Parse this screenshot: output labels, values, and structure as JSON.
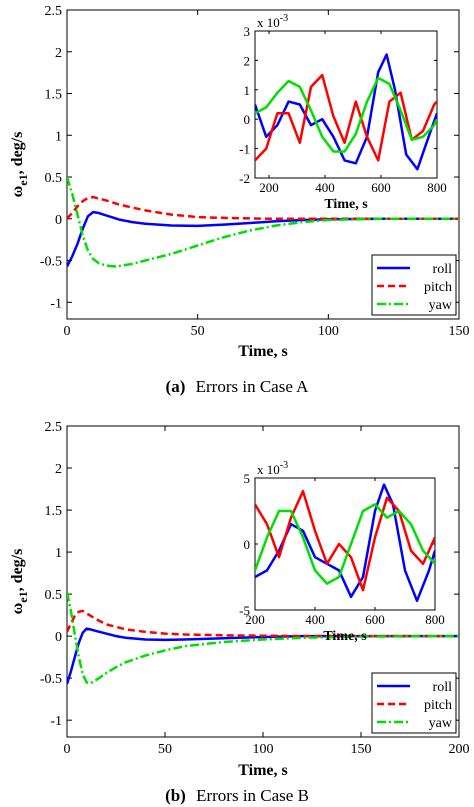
{
  "panels": [
    {
      "caption_letter": "(a)",
      "caption_text": "Errors in Case A"
    },
    {
      "caption_letter": "(b)",
      "caption_text": "Errors in Case B"
    }
  ],
  "chart_data": [
    {
      "type": "line",
      "panel": "a",
      "xlabel": "Time, s",
      "ylabel": "ω_e1, deg/s",
      "xlim": [
        0,
        150
      ],
      "ylim": [
        -1.2,
        2.5
      ],
      "xticks": [
        0,
        50,
        100,
        150
      ],
      "yticks": [
        -1,
        -0.5,
        0,
        0.5,
        1,
        1.5,
        2,
        2.5
      ],
      "legend": {
        "placement": "bottom-right",
        "entries": [
          "roll",
          "pitch",
          "yaw"
        ]
      },
      "colors": {
        "roll": "#0000ff",
        "pitch": "#ff0000",
        "yaw": "#00e000"
      },
      "series": [
        {
          "name": "roll",
          "style": "solid",
          "x": [
            0,
            2,
            4,
            6,
            8,
            10,
            12,
            15,
            20,
            25,
            30,
            40,
            50,
            60,
            70,
            80,
            90,
            100,
            120,
            150
          ],
          "values": [
            -0.57,
            -0.45,
            -0.3,
            -0.12,
            0.03,
            0.08,
            0.07,
            0.04,
            -0.01,
            -0.04,
            -0.06,
            -0.08,
            -0.085,
            -0.07,
            -0.05,
            -0.03,
            -0.015,
            -0.005,
            0,
            0
          ]
        },
        {
          "name": "pitch",
          "style": "dashed",
          "x": [
            0,
            2,
            4,
            6,
            8,
            10,
            15,
            20,
            30,
            40,
            50,
            60,
            70,
            80,
            90,
            100,
            120,
            150
          ],
          "values": [
            0,
            0.07,
            0.15,
            0.21,
            0.25,
            0.26,
            0.22,
            0.17,
            0.1,
            0.05,
            0.02,
            0.01,
            0.005,
            0,
            0,
            0,
            0,
            0
          ]
        },
        {
          "name": "yaw",
          "style": "dashdot",
          "x": [
            0,
            2,
            4,
            6,
            8,
            10,
            12,
            15,
            18,
            20,
            25,
            30,
            40,
            50,
            60,
            70,
            80,
            90,
            100,
            120,
            150
          ],
          "values": [
            0.5,
            0.3,
            0.05,
            -0.2,
            -0.38,
            -0.48,
            -0.53,
            -0.56,
            -0.57,
            -0.565,
            -0.54,
            -0.5,
            -0.42,
            -0.32,
            -0.22,
            -0.14,
            -0.08,
            -0.04,
            -0.015,
            0,
            0
          ]
        }
      ],
      "inset": {
        "xlabel": "Time, s",
        "multiplier": "x 10",
        "multiplier_exp": "-3",
        "xlim": [
          150,
          800
        ],
        "ylim": [
          -2,
          3
        ],
        "xticks": [
          200,
          400,
          600,
          800
        ],
        "yticks": [
          -2,
          -1,
          0,
          1,
          2,
          3
        ],
        "series": [
          {
            "name": "roll",
            "x": [
              150,
              190,
              230,
              270,
              310,
              350,
              390,
              430,
              470,
              510,
              550,
              590,
              620,
              650,
              690,
              730,
              770,
              800
            ],
            "values": [
              0.5,
              -0.6,
              -0.2,
              0.6,
              0.5,
              -0.2,
              0,
              -0.6,
              -1.4,
              -1.5,
              -0.6,
              1.6,
              2.2,
              1.0,
              -1.2,
              -1.7,
              -0.6,
              0.2
            ]
          },
          {
            "name": "pitch",
            "x": [
              150,
              190,
              230,
              270,
              310,
              350,
              390,
              430,
              470,
              510,
              550,
              590,
              630,
              670,
              710,
              750,
              790,
              800
            ],
            "values": [
              -1.4,
              -1.0,
              0.2,
              0.2,
              -0.8,
              1.1,
              1.5,
              0.1,
              -0.8,
              0.6,
              -0.6,
              -1.4,
              0.6,
              0.9,
              -0.7,
              -0.4,
              0.5,
              0.6
            ]
          },
          {
            "name": "yaw",
            "x": [
              150,
              190,
              230,
              270,
              310,
              350,
              390,
              430,
              470,
              510,
              550,
              590,
              630,
              670,
              710,
              750,
              790,
              800
            ],
            "values": [
              0.2,
              0.4,
              0.9,
              1.3,
              1.1,
              0.3,
              -0.6,
              -1.1,
              -1.1,
              -0.5,
              0.6,
              1.4,
              1.2,
              0.3,
              -0.7,
              -0.6,
              -0.2,
              0
            ]
          }
        ]
      }
    },
    {
      "type": "line",
      "panel": "b",
      "xlabel": "Time, s",
      "ylabel": "ω_e1, deg/s",
      "xlim": [
        0,
        200
      ],
      "ylim": [
        -1.2,
        2.5
      ],
      "xticks": [
        0,
        50,
        100,
        150,
        200
      ],
      "yticks": [
        -1,
        -0.5,
        0,
        0.5,
        1,
        1.5,
        2,
        2.5
      ],
      "legend": {
        "placement": "bottom-right",
        "entries": [
          "roll",
          "pitch",
          "yaw"
        ]
      },
      "colors": {
        "roll": "#0000ff",
        "pitch": "#ff0000",
        "yaw": "#00e000"
      },
      "series": [
        {
          "name": "roll",
          "style": "solid",
          "x": [
            0,
            2,
            4,
            6,
            8,
            10,
            12,
            15,
            20,
            25,
            30,
            40,
            50,
            60,
            80,
            100,
            120,
            150,
            200
          ],
          "values": [
            -0.57,
            -0.42,
            -0.25,
            -0.08,
            0.04,
            0.09,
            0.08,
            0.06,
            0.03,
            0,
            -0.02,
            -0.04,
            -0.045,
            -0.04,
            -0.025,
            -0.01,
            0,
            0,
            0
          ]
        },
        {
          "name": "pitch",
          "style": "dashed",
          "x": [
            0,
            2,
            4,
            6,
            8,
            10,
            15,
            20,
            30,
            40,
            50,
            60,
            80,
            100,
            120,
            150,
            200
          ],
          "values": [
            0.05,
            0.15,
            0.24,
            0.29,
            0.3,
            0.27,
            0.2,
            0.14,
            0.08,
            0.05,
            0.03,
            0.02,
            0.01,
            0.005,
            0,
            0,
            0
          ]
        },
        {
          "name": "yaw",
          "style": "dashdot",
          "x": [
            0,
            2,
            4,
            6,
            8,
            10,
            12,
            15,
            20,
            25,
            30,
            40,
            50,
            60,
            80,
            100,
            120,
            150,
            200
          ],
          "values": [
            0.52,
            0.3,
            0.02,
            -0.25,
            -0.45,
            -0.55,
            -0.56,
            -0.52,
            -0.44,
            -0.37,
            -0.31,
            -0.23,
            -0.17,
            -0.12,
            -0.07,
            -0.04,
            -0.02,
            -0.005,
            0
          ]
        }
      ],
      "inset": {
        "xlabel": "Time, s",
        "multiplier": "x 10",
        "multiplier_exp": "-3",
        "xlim": [
          200,
          800
        ],
        "ylim": [
          -5,
          5
        ],
        "xticks": [
          200,
          400,
          600,
          800
        ],
        "yticks": [
          -5,
          0,
          5
        ],
        "series": [
          {
            "name": "roll",
            "x": [
              200,
              240,
              280,
              320,
              360,
              400,
              440,
              480,
              520,
              560,
              600,
              630,
              660,
              700,
              740,
              780,
              800
            ],
            "values": [
              -2.5,
              -2.0,
              -0.5,
              1.5,
              1.0,
              -1.0,
              -1.5,
              -2.0,
              -4.0,
              -2.5,
              2.5,
              4.5,
              3.0,
              -2.0,
              -4.3,
              -2.0,
              -0.5
            ]
          },
          {
            "name": "pitch",
            "x": [
              200,
              240,
              280,
              320,
              360,
              400,
              440,
              480,
              520,
              560,
              600,
              640,
              680,
              720,
              760,
              800
            ],
            "values": [
              3.0,
              1.5,
              -1.0,
              2.0,
              4.0,
              1.0,
              -1.5,
              0,
              -1.0,
              -3.5,
              0.5,
              3.5,
              2.5,
              -0.5,
              -1.5,
              0.5
            ]
          },
          {
            "name": "yaw",
            "x": [
              200,
              240,
              280,
              320,
              360,
              400,
              440,
              480,
              520,
              560,
              600,
              640,
              680,
              720,
              760,
              800
            ],
            "values": [
              -2.0,
              0.5,
              2.5,
              2.5,
              0.5,
              -2.0,
              -3.0,
              -2.5,
              0,
              2.5,
              3.0,
              2.0,
              2.5,
              1.5,
              -0.5,
              -1.5
            ]
          }
        ]
      }
    }
  ]
}
